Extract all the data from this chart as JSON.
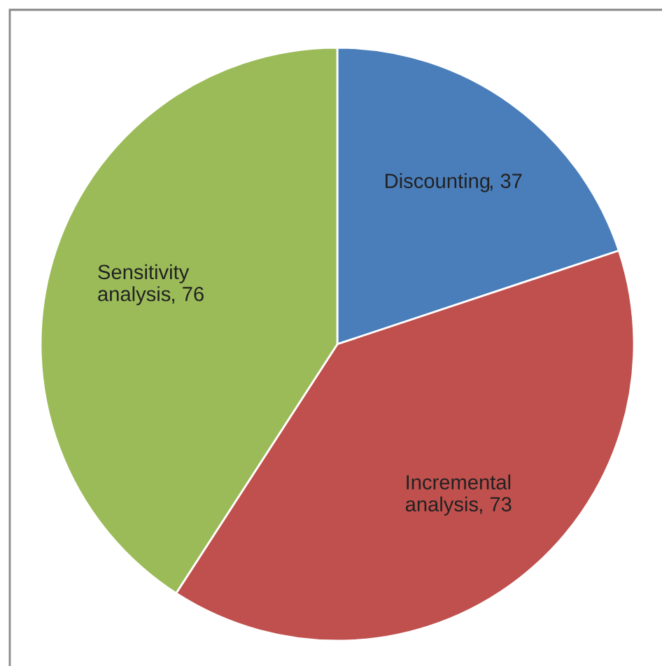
{
  "chart_data": {
    "type": "pie",
    "categories": [
      "Discounting",
      "Incremental\nanalysis",
      "Sensitivity\nanalysis"
    ],
    "values": [
      37,
      73,
      76
    ],
    "colors": [
      "#4a7ebb",
      "#c0504d",
      "#9bbb59"
    ],
    "value_labels": [
      ", 37",
      ", 73",
      ", 76"
    ],
    "legend": false
  }
}
